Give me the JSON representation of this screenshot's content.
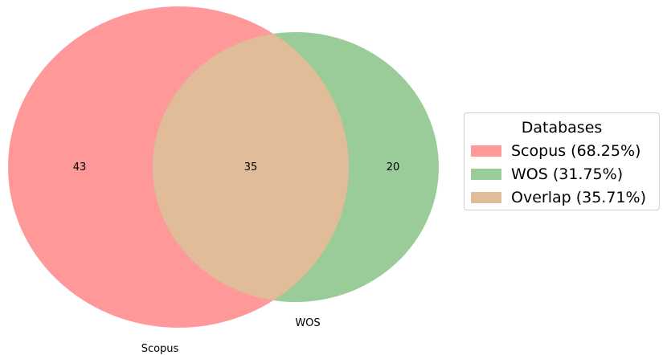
{
  "chart_data": {
    "type": "venn",
    "sets": [
      {
        "name": "Scopus",
        "color": "#ff9999",
        "only": 43
      },
      {
        "name": "WOS",
        "color": "#99cc99",
        "only": 20
      }
    ],
    "overlap": {
      "value": 35,
      "color": "#e0bc99"
    },
    "legend": {
      "title": "Databases",
      "placement": "right",
      "entries": [
        {
          "label": "Scopus (68.25%)",
          "color": "#ff9999"
        },
        {
          "label": "WOS (31.75%)",
          "color": "#99cc99"
        },
        {
          "label": "Overlap (35.71%)",
          "color": "#e0bc99"
        }
      ]
    }
  }
}
